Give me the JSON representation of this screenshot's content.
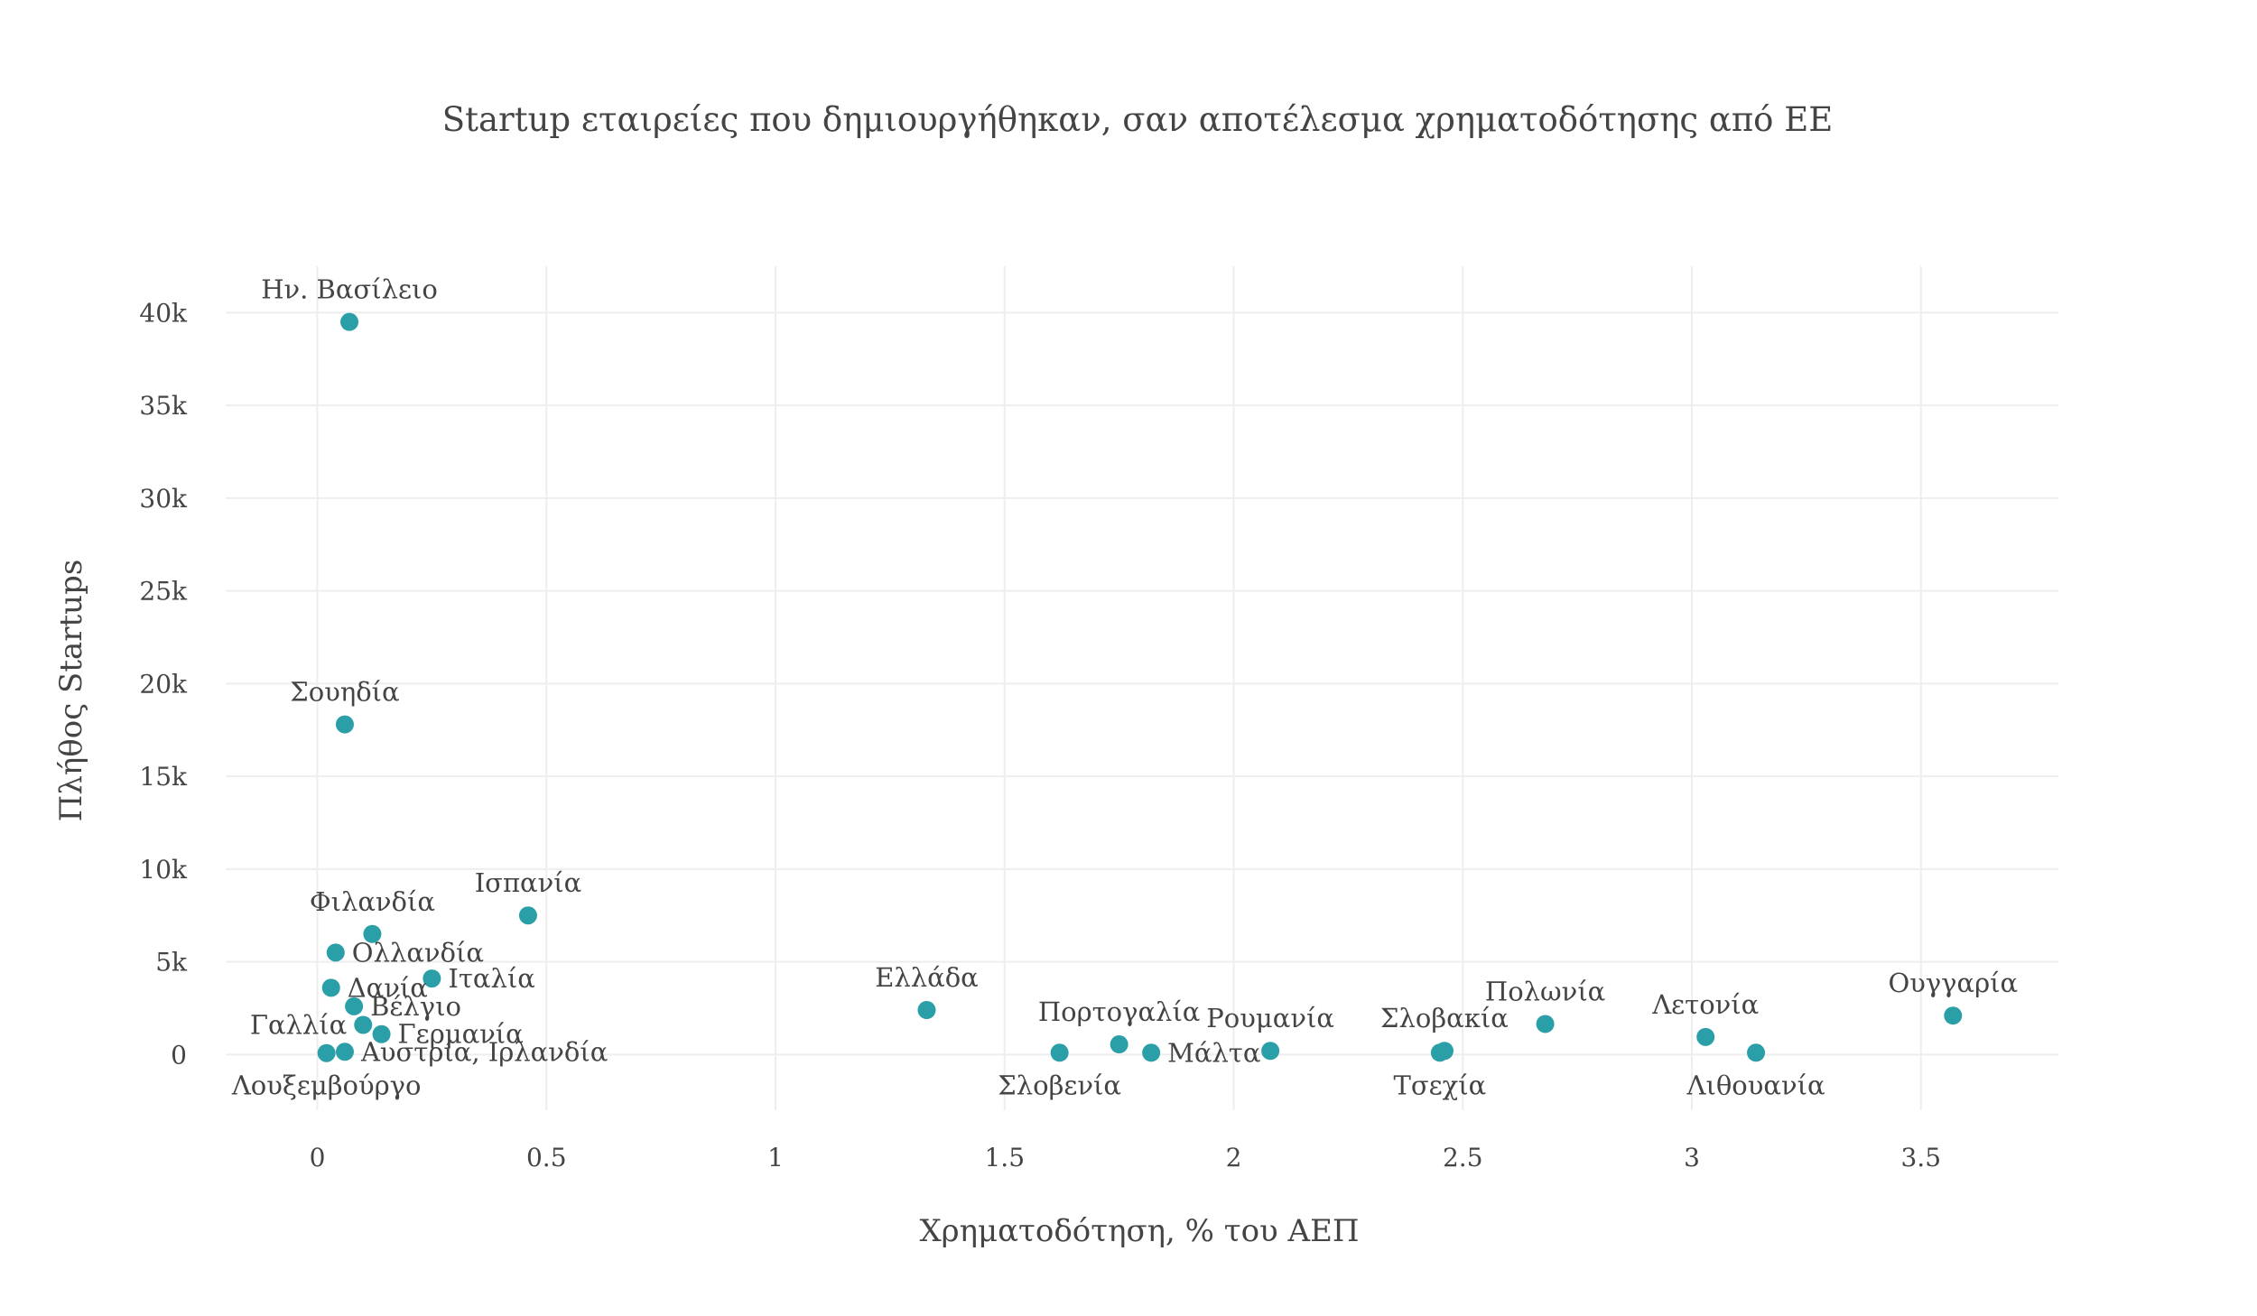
{
  "chart_data": {
    "type": "scatter",
    "title": "Startup εταιρείες που δημιουργήθηκαν, σαν αποτέλεσμα χρηματοδότησης από ΕΕ",
    "xlabel": "Χρηματοδότηση, % του ΑΕΠ",
    "ylabel": "Πλήθος Startups",
    "xlim": [
      -0.2,
      3.8
    ],
    "ylim": [
      -3000,
      42500
    ],
    "x_ticks": [
      0,
      0.5,
      1,
      1.5,
      2,
      2.5,
      3,
      3.5
    ],
    "x_tick_labels": [
      "0",
      "0.5",
      "1",
      "1.5",
      "2",
      "2.5",
      "3",
      "3.5"
    ],
    "y_ticks": [
      0,
      5000,
      10000,
      15000,
      20000,
      25000,
      30000,
      35000,
      40000
    ],
    "y_tick_labels": [
      "0",
      "5k",
      "10k",
      "15k",
      "20k",
      "25k",
      "30k",
      "35k",
      "40k"
    ],
    "grid": true,
    "marker_color": "#2a9fa8",
    "points": [
      {
        "label": "Ην. Βασίλειο",
        "x": 0.07,
        "y": 39500,
        "pos": "top"
      },
      {
        "label": "Σουηδία",
        "x": 0.06,
        "y": 17800,
        "pos": "top"
      },
      {
        "label": "Ισπανία",
        "x": 0.46,
        "y": 7500,
        "pos": "top"
      },
      {
        "label": "Φιλανδία",
        "x": 0.12,
        "y": 6500,
        "pos": "top"
      },
      {
        "label": "Ολλανδία",
        "x": 0.04,
        "y": 5500,
        "pos": "right"
      },
      {
        "label": "Ιταλία",
        "x": 0.25,
        "y": 4100,
        "pos": "right"
      },
      {
        "label": "Δανία",
        "x": 0.03,
        "y": 3600,
        "pos": "right"
      },
      {
        "label": "Βέλγιο",
        "x": 0.08,
        "y": 2600,
        "pos": "right"
      },
      {
        "label": "Γαλλία",
        "x": 0.1,
        "y": 1600,
        "pos": "left"
      },
      {
        "label": "Γερμανία",
        "x": 0.14,
        "y": 1100,
        "pos": "right"
      },
      {
        "label": "Αυστρία, Ιρλανδία",
        "x": 0.06,
        "y": 150,
        "pos": "right"
      },
      {
        "label": "Λουξεμβούργο",
        "x": 0.02,
        "y": 80,
        "pos": "bottom"
      },
      {
        "label": "Ελλάδα",
        "x": 1.33,
        "y": 2400,
        "pos": "top"
      },
      {
        "label": "Πορτογαλία",
        "x": 1.75,
        "y": 550,
        "pos": "top"
      },
      {
        "label": "Σλοβενία",
        "x": 1.62,
        "y": 100,
        "pos": "bottom"
      },
      {
        "label": "Μάλτα",
        "x": 1.82,
        "y": 100,
        "pos": "right"
      },
      {
        "label": "Ρουμανία",
        "x": 2.08,
        "y": 200,
        "pos": "top"
      },
      {
        "label": "Σλοβακία",
        "x": 2.46,
        "y": 200,
        "pos": "top"
      },
      {
        "label": "Τσεχία",
        "x": 2.45,
        "y": 100,
        "pos": "bottom"
      },
      {
        "label": "Πολωνία",
        "x": 2.68,
        "y": 1650,
        "pos": "top"
      },
      {
        "label": "Λετονία",
        "x": 3.03,
        "y": 950,
        "pos": "top"
      },
      {
        "label": "Λιθουανία",
        "x": 3.14,
        "y": 100,
        "pos": "bottom"
      },
      {
        "label": "Ουγγαρία",
        "x": 3.57,
        "y": 2100,
        "pos": "top"
      }
    ]
  }
}
